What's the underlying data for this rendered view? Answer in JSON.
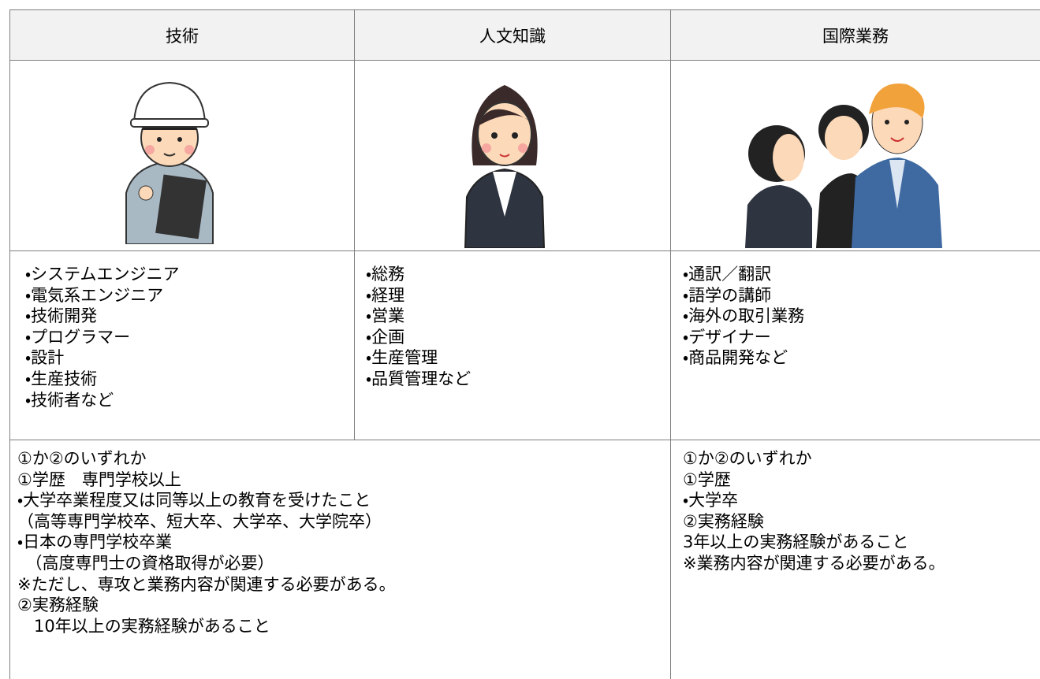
{
  "header": {
    "columns": [
      "技術",
      "人文知識",
      "国際業務"
    ]
  },
  "jobs": [
    {
      "items": [
        "・システムエンジニア",
        "・電気系エンジニア",
        "・技術開発",
        "・プログラマー",
        "・設計",
        "・生産技術",
        "・技術者など"
      ]
    },
    {
      "items": [
        "・総務",
        "・経理",
        "・営業",
        "・企画",
        "・生産管理",
        "・品質管理など"
      ]
    },
    {
      "items": [
        "・通訳／翻訳",
        "・語学の講師",
        "・海外の取引業務",
        "・デザイナー",
        "・商品開発など"
      ]
    }
  ],
  "requirements": [
    {
      "lines": [
        "①か②のいずれか",
        "①学歴　専門学校以上",
        "・大学卒業程度又は同等以上の教育を受けたこと",
        "（高等専門学校卒、短大卒、大学卒、大学院卒）",
        "・日本の専門学校卒業",
        "　（高度専門士の資格取得が必要）",
        "※ただし、専攻と業務内容が関連する必要がある。",
        "②実務経験",
        "　10年以上の実務経験があること"
      ]
    },
    {
      "lines": [
        "①か②のいずれか",
        "①学歴",
        "・大学卒",
        "②実務経験",
        "3年以上の実務経験があること",
        "※業務内容が関連する必要がある。"
      ]
    }
  ]
}
